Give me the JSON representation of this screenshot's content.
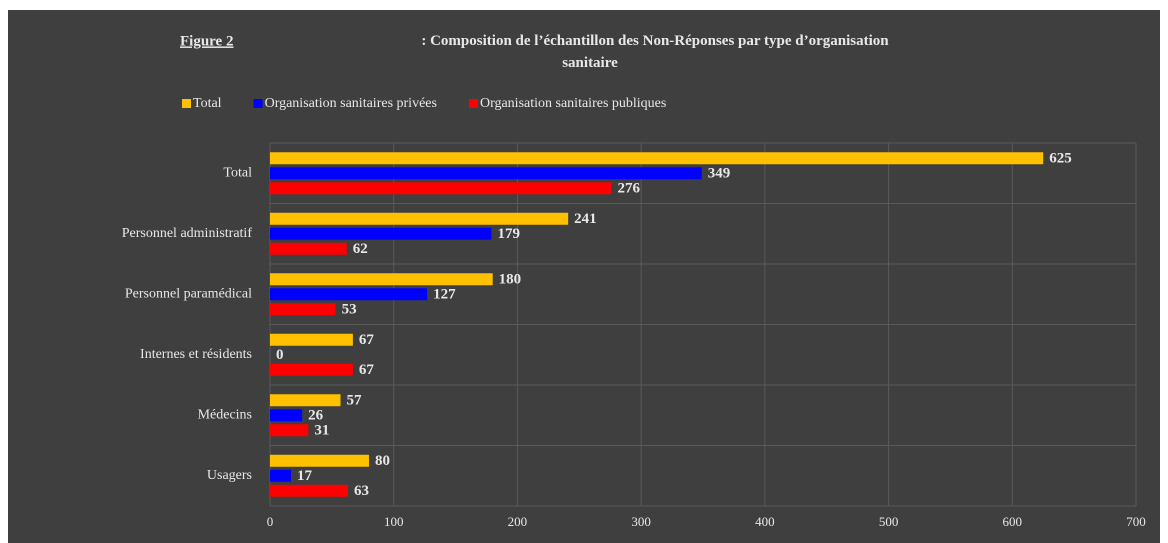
{
  "chart_data": {
    "type": "bar",
    "orientation": "horizontal",
    "figure_label": "Figure 2",
    "title": ": Composition  de l’échantillon des Non-Réponses  par type d’organisation sanitaire",
    "categories": [
      "Total",
      "Personnel administratif",
      "Personnel paramédical",
      "Internes et résidents",
      "Médecins",
      "Usagers"
    ],
    "series": [
      {
        "name": "Total",
        "color": "#FFC000",
        "values": [
          625,
          241,
          180,
          67,
          57,
          80
        ]
      },
      {
        "name": "Organisation sanitaires privées",
        "color": "#0000FF",
        "values": [
          349,
          179,
          127,
          0,
          26,
          17
        ]
      },
      {
        "name": "Organisation sanitaires publiques",
        "color": "#FF0000",
        "values": [
          276,
          62,
          53,
          67,
          31,
          63
        ]
      }
    ],
    "xlim": [
      0,
      700
    ],
    "xticks": [
      0,
      100,
      200,
      300,
      400,
      500,
      600,
      700
    ],
    "grid": true,
    "legend": "top"
  }
}
